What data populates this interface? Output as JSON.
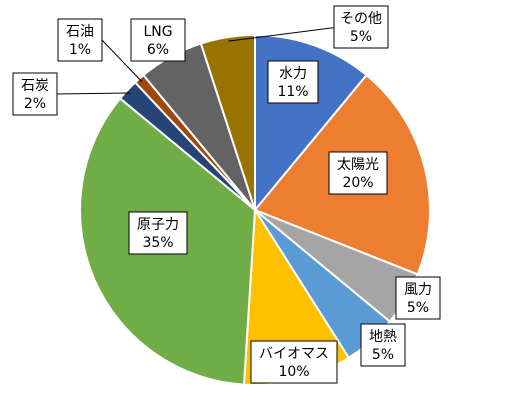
{
  "chart_data": {
    "type": "pie",
    "title": "",
    "start_angle_deg": 0,
    "direction": "clockwise",
    "slices": [
      {
        "label": "水力",
        "value": 11,
        "pct_label": "11%",
        "color": "#4472C4"
      },
      {
        "label": "太陽光",
        "value": 20,
        "pct_label": "20%",
        "color": "#ED7D31"
      },
      {
        "label": "風力",
        "value": 5,
        "pct_label": "5%",
        "color": "#A5A5A5"
      },
      {
        "label": "地熱",
        "value": 5,
        "pct_label": "5%",
        "color": "#5B9BD5"
      },
      {
        "label": "バイオマス",
        "value": 10,
        "pct_label": "10%",
        "color": "#FFC000"
      },
      {
        "label": "原子力",
        "value": 35,
        "pct_label": "35%",
        "color": "#70AD47"
      },
      {
        "label": "石炭",
        "value": 2,
        "pct_label": "2%",
        "color": "#264478"
      },
      {
        "label": "石油",
        "value": 1,
        "pct_label": "1%",
        "color": "#9E480E"
      },
      {
        "label": "LNG",
        "value": 6,
        "pct_label": "6%",
        "color": "#636363"
      },
      {
        "label": "その他",
        "value": 5,
        "pct_label": "5%",
        "color": "#997300"
      }
    ]
  }
}
